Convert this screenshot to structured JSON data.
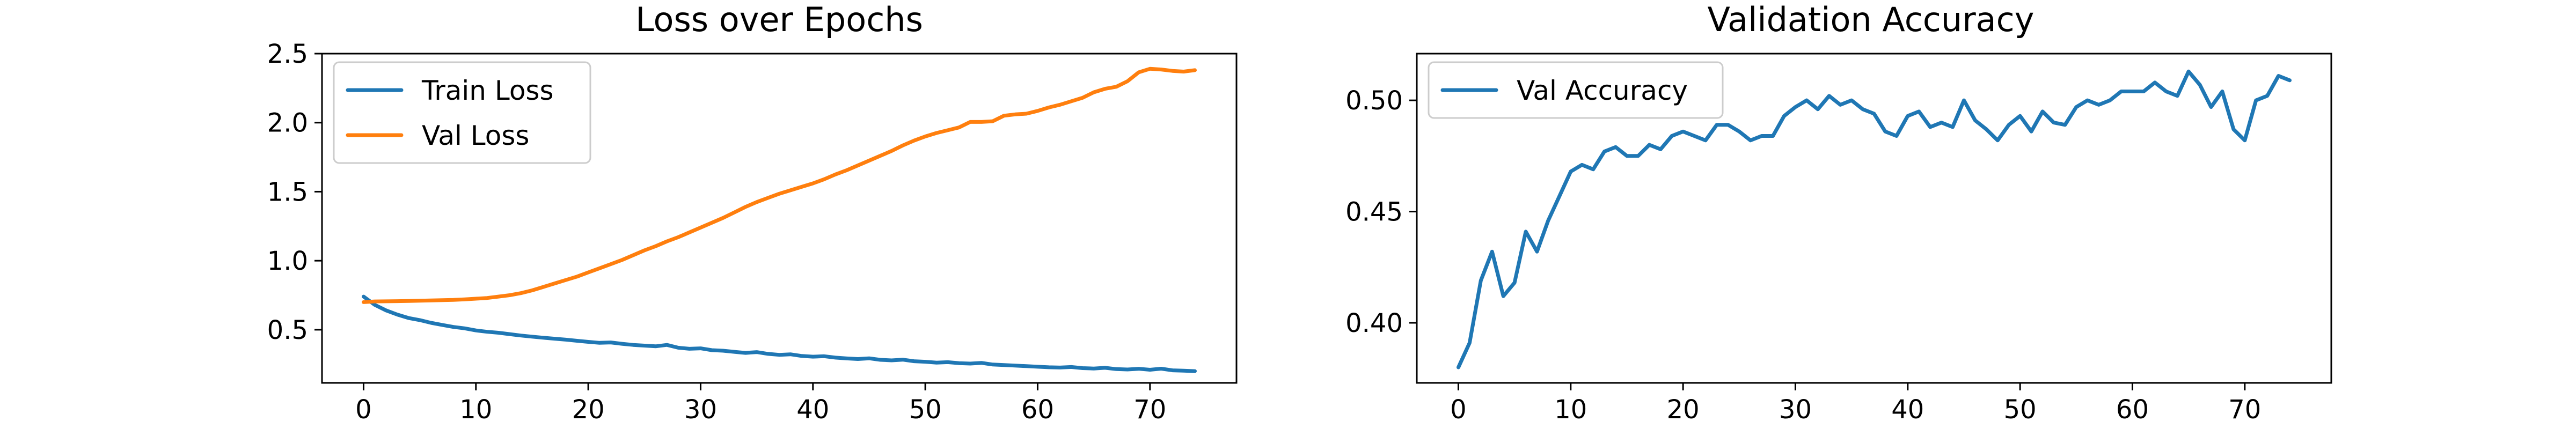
{
  "chart_data": [
    {
      "type": "line",
      "title": "Loss over Epochs",
      "xlabel": "",
      "ylabel": "",
      "xlim": [
        -3.7,
        77.7
      ],
      "ylim": [
        0.115,
        2.5
      ],
      "xticks": [
        0,
        10,
        20,
        30,
        40,
        50,
        60,
        70
      ],
      "yticks": [
        0.5,
        1.0,
        1.5,
        2.0,
        2.5
      ],
      "ytick_labels": [
        "0.5",
        "1.0",
        "1.5",
        "2.0",
        "2.5"
      ],
      "grid": false,
      "legend": "upper-left",
      "series": [
        {
          "name": "Train Loss",
          "color": "#1f77b4",
          "x": [
            0,
            1,
            2,
            3,
            4,
            5,
            6,
            7,
            8,
            9,
            10,
            11,
            12,
            13,
            14,
            15,
            16,
            17,
            18,
            19,
            20,
            21,
            22,
            23,
            24,
            25,
            26,
            27,
            28,
            29,
            30,
            31,
            32,
            33,
            34,
            35,
            36,
            37,
            38,
            39,
            40,
            41,
            42,
            43,
            44,
            45,
            46,
            47,
            48,
            49,
            50,
            51,
            52,
            53,
            54,
            55,
            56,
            57,
            58,
            59,
            60,
            61,
            62,
            63,
            64,
            65,
            66,
            67,
            68,
            69,
            70,
            71,
            72,
            73,
            74
          ],
          "values": [
            0.74,
            0.68,
            0.64,
            0.61,
            0.585,
            0.57,
            0.55,
            0.535,
            0.52,
            0.51,
            0.495,
            0.485,
            0.478,
            0.468,
            0.458,
            0.45,
            0.442,
            0.435,
            0.428,
            0.42,
            0.412,
            0.405,
            0.408,
            0.398,
            0.39,
            0.385,
            0.38,
            0.39,
            0.37,
            0.362,
            0.365,
            0.352,
            0.348,
            0.34,
            0.332,
            0.338,
            0.325,
            0.318,
            0.322,
            0.31,
            0.305,
            0.308,
            0.298,
            0.292,
            0.288,
            0.293,
            0.282,
            0.278,
            0.283,
            0.272,
            0.268,
            0.262,
            0.265,
            0.258,
            0.255,
            0.26,
            0.248,
            0.244,
            0.24,
            0.236,
            0.232,
            0.228,
            0.226,
            0.23,
            0.222,
            0.219,
            0.224,
            0.215,
            0.212,
            0.217,
            0.21,
            0.218,
            0.206,
            0.203,
            0.2
          ]
        },
        {
          "name": "Val Loss",
          "color": "#ff7f0e",
          "x": [
            0,
            1,
            2,
            3,
            4,
            5,
            6,
            7,
            8,
            9,
            10,
            11,
            12,
            13,
            14,
            15,
            16,
            17,
            18,
            19,
            20,
            21,
            22,
            23,
            24,
            25,
            26,
            27,
            28,
            29,
            30,
            31,
            32,
            33,
            34,
            35,
            36,
            37,
            38,
            39,
            40,
            41,
            42,
            43,
            44,
            45,
            46,
            47,
            48,
            49,
            50,
            51,
            52,
            53,
            54,
            55,
            56,
            57,
            58,
            59,
            60,
            61,
            62,
            63,
            64,
            65,
            66,
            67,
            68,
            69,
            70,
            71,
            72,
            73,
            74
          ],
          "values": [
            0.7,
            0.705,
            0.706,
            0.707,
            0.708,
            0.71,
            0.712,
            0.714,
            0.716,
            0.72,
            0.725,
            0.73,
            0.74,
            0.75,
            0.765,
            0.785,
            0.81,
            0.835,
            0.86,
            0.885,
            0.915,
            0.945,
            0.975,
            1.005,
            1.04,
            1.075,
            1.105,
            1.14,
            1.17,
            1.205,
            1.24,
            1.275,
            1.31,
            1.35,
            1.39,
            1.425,
            1.455,
            1.485,
            1.51,
            1.535,
            1.56,
            1.59,
            1.625,
            1.655,
            1.69,
            1.725,
            1.76,
            1.795,
            1.835,
            1.87,
            1.9,
            1.925,
            1.945,
            1.965,
            2.005,
            2.005,
            2.01,
            2.05,
            2.06,
            2.065,
            2.085,
            2.11,
            2.13,
            2.155,
            2.18,
            2.22,
            2.245,
            2.26,
            2.3,
            2.365,
            2.39,
            2.385,
            2.375,
            2.37,
            2.38
          ]
        }
      ]
    },
    {
      "type": "line",
      "title": "Validation Accuracy",
      "xlabel": "",
      "ylabel": "",
      "xlim": [
        -3.7,
        77.7
      ],
      "ylim": [
        0.373,
        0.521
      ],
      "xticks": [
        0,
        10,
        20,
        30,
        40,
        50,
        60,
        70
      ],
      "yticks": [
        0.4,
        0.45,
        0.5
      ],
      "ytick_labels": [
        "0.40",
        "0.45",
        "0.50"
      ],
      "grid": false,
      "legend": "upper-left",
      "series": [
        {
          "name": "Val Accuracy",
          "color": "#1f77b4",
          "x": [
            0,
            1,
            2,
            3,
            4,
            5,
            6,
            7,
            8,
            9,
            10,
            11,
            12,
            13,
            14,
            15,
            16,
            17,
            18,
            19,
            20,
            21,
            22,
            23,
            24,
            25,
            26,
            27,
            28,
            29,
            30,
            31,
            32,
            33,
            34,
            35,
            36,
            37,
            38,
            39,
            40,
            41,
            42,
            43,
            44,
            45,
            46,
            47,
            48,
            49,
            50,
            51,
            52,
            53,
            54,
            55,
            56,
            57,
            58,
            59,
            60,
            61,
            62,
            63,
            64,
            65,
            66,
            67,
            68,
            69,
            70,
            71,
            72,
            73,
            74
          ],
          "values": [
            0.38,
            0.391,
            0.419,
            0.432,
            0.412,
            0.418,
            0.441,
            0.432,
            0.446,
            0.457,
            0.468,
            0.471,
            0.469,
            0.477,
            0.479,
            0.475,
            0.475,
            0.48,
            0.478,
            0.484,
            0.486,
            0.484,
            0.482,
            0.489,
            0.489,
            0.486,
            0.482,
            0.484,
            0.484,
            0.493,
            0.497,
            0.5,
            0.496,
            0.502,
            0.498,
            0.5,
            0.496,
            0.494,
            0.486,
            0.484,
            0.493,
            0.495,
            0.488,
            0.49,
            0.488,
            0.5,
            0.491,
            0.487,
            0.482,
            0.489,
            0.493,
            0.486,
            0.495,
            0.49,
            0.489,
            0.497,
            0.5,
            0.498,
            0.5,
            0.504,
            0.504,
            0.504,
            0.508,
            0.504,
            0.502,
            0.513,
            0.507,
            0.497,
            0.504,
            0.487,
            0.482,
            0.5,
            0.502,
            0.511,
            0.509
          ]
        }
      ]
    }
  ]
}
